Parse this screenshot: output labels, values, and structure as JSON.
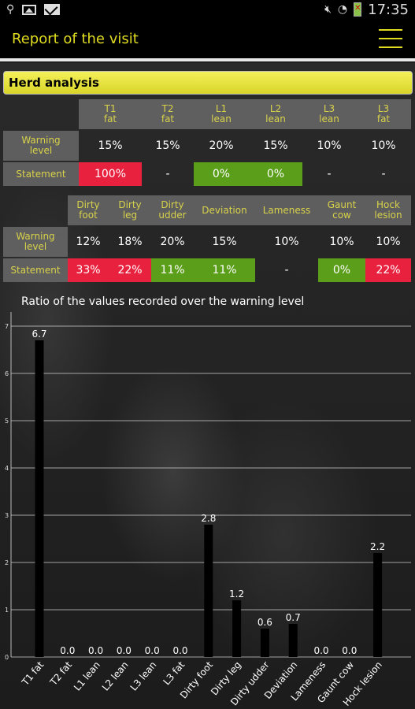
{
  "status_bar": {
    "time": "17:35",
    "icons": [
      "usb-icon",
      "image-icon",
      "mail-icon",
      "mute-icon",
      "wifi-icon",
      "battery-icon"
    ]
  },
  "app_bar": {
    "title": "Report of the visit",
    "menu_icon": "hamburger-menu-icon"
  },
  "section": {
    "title": "Herd analysis"
  },
  "table1": {
    "headers": [
      "T1\nfat",
      "T2\nfat",
      "L1\nlean",
      "L2\nlean",
      "L3\nlean",
      "L3\nfat"
    ],
    "warning_label": "Warning\nlevel",
    "warning": [
      "15%",
      "15%",
      "20%",
      "15%",
      "10%",
      "10%"
    ],
    "statement_label": "Statement",
    "statement": [
      "100%",
      "-",
      "0%",
      "0%",
      "-",
      "-"
    ],
    "statement_status": [
      "red",
      "none",
      "green",
      "green",
      "none",
      "none"
    ]
  },
  "table2": {
    "headers": [
      "Dirty\nfoot",
      "Dirty\nleg",
      "Dirty\nudder",
      "Deviation",
      "Lameness",
      "Gaunt\ncow",
      "Hock\nlesion"
    ],
    "warning_label": "Warning\nlevel",
    "warning": [
      "12%",
      "18%",
      "20%",
      "15%",
      "10%",
      "10%",
      "10%"
    ],
    "statement_label": "Statement",
    "statement": [
      "33%",
      "22%",
      "11%",
      "11%",
      "-",
      "0%",
      "22%"
    ],
    "statement_status": [
      "red",
      "red",
      "green",
      "green",
      "none",
      "green",
      "red"
    ]
  },
  "colors": {
    "accent_yellow": "#e0dc20",
    "alert_red": "#e8213e",
    "ok_green": "#5a9e1a"
  },
  "chart_data": {
    "type": "bar",
    "title": "Ratio of the values recorded over the warning level",
    "categories": [
      "T1 fat",
      "T2 fat",
      "L1 lean",
      "L2 lean",
      "L3 lean",
      "L3 fat",
      "Dirty foot",
      "Dirty leg",
      "Dirty udder",
      "Deviation",
      "Lameness",
      "Gaunt cow",
      "Hock lesion"
    ],
    "values": [
      6.7,
      0.0,
      0.0,
      0.0,
      0.0,
      0.0,
      2.8,
      1.2,
      0.6,
      0.7,
      0.0,
      0.0,
      2.2
    ],
    "value_labels": [
      "6.7",
      "0.0",
      "0.0",
      "0.0",
      "0.0",
      "0.0",
      "2.8",
      "1.2",
      "0.6",
      "0.7",
      "0.0",
      "0.0",
      "2.2"
    ],
    "y_ticks": [
      "0",
      "1",
      "2",
      "3",
      "4",
      "5",
      "6",
      "7"
    ],
    "ylim": [
      0,
      7
    ],
    "grid": true,
    "bar_color": "#000000"
  }
}
